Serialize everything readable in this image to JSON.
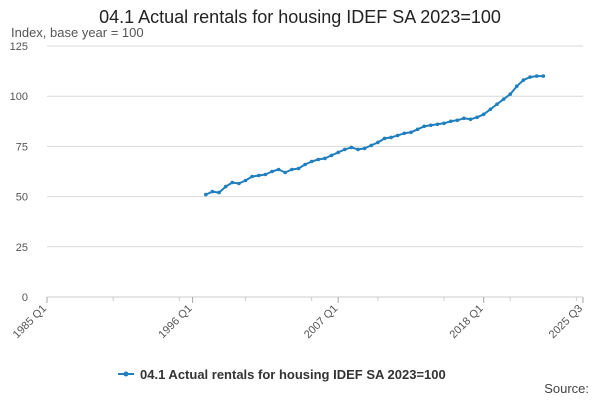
{
  "title": "04.1 Actual rentals for housing IDEF SA 2023=100",
  "ylabel": "Index, base year = 100",
  "source": "Source:",
  "colors": {
    "series": "#1f7fbf",
    "grid": "#d9d9d9",
    "axis": "#cccccc"
  },
  "chart_data": {
    "type": "line",
    "title": "04.1 Actual rentals for housing IDEF SA 2023=100",
    "ylabel": "Index, base year = 100",
    "xlabel": "",
    "ylim": [
      0,
      125
    ],
    "yticks": [
      0,
      25,
      50,
      75,
      100,
      125
    ],
    "xlim": [
      "1985 Q1",
      "2025 Q3"
    ],
    "xticks": [
      "1985 Q1",
      "1996 Q1",
      "2007 Q1",
      "2018 Q1",
      "2025 Q3"
    ],
    "grid": true,
    "legend": "bottom",
    "series": [
      {
        "name": "04.1 Actual rentals for housing IDEF SA 2023=100",
        "points": [
          [
            "1997 Q1",
            51
          ],
          [
            "1997 Q3",
            52.5
          ],
          [
            "1998 Q1",
            52
          ],
          [
            "1998 Q3",
            55
          ],
          [
            "1999 Q1",
            57
          ],
          [
            "1999 Q3",
            56.5
          ],
          [
            "2000 Q1",
            58
          ],
          [
            "2000 Q3",
            60
          ],
          [
            "2001 Q1",
            60.5
          ],
          [
            "2001 Q3",
            61
          ],
          [
            "2002 Q1",
            62.5
          ],
          [
            "2002 Q3",
            63.5
          ],
          [
            "2003 Q1",
            62
          ],
          [
            "2003 Q3",
            63.5
          ],
          [
            "2004 Q1",
            64
          ],
          [
            "2004 Q3",
            66
          ],
          [
            "2005 Q1",
            67.5
          ],
          [
            "2005 Q3",
            68.5
          ],
          [
            "2006 Q1",
            69
          ],
          [
            "2006 Q3",
            70.5
          ],
          [
            "2007 Q1",
            72
          ],
          [
            "2007 Q3",
            73.5
          ],
          [
            "2008 Q1",
            74.5
          ],
          [
            "2008 Q3",
            73.5
          ],
          [
            "2009 Q1",
            74
          ],
          [
            "2009 Q3",
            75.5
          ],
          [
            "2010 Q1",
            77
          ],
          [
            "2010 Q3",
            79
          ],
          [
            "2011 Q1",
            79.5
          ],
          [
            "2011 Q3",
            80.5
          ],
          [
            "2012 Q1",
            81.5
          ],
          [
            "2012 Q3",
            82
          ],
          [
            "2013 Q1",
            83.5
          ],
          [
            "2013 Q3",
            85
          ],
          [
            "2014 Q1",
            85.5
          ],
          [
            "2014 Q3",
            86
          ],
          [
            "2015 Q1",
            86.5
          ],
          [
            "2015 Q3",
            87.5
          ],
          [
            "2016 Q1",
            88
          ],
          [
            "2016 Q3",
            89
          ],
          [
            "2017 Q1",
            88.5
          ],
          [
            "2017 Q3",
            89.5
          ],
          [
            "2018 Q1",
            91
          ],
          [
            "2018 Q3",
            93.5
          ],
          [
            "2019 Q1",
            96
          ],
          [
            "2019 Q3",
            98.5
          ],
          [
            "2020 Q1",
            101
          ],
          [
            "2020 Q3",
            105
          ],
          [
            "2021 Q1",
            108
          ],
          [
            "2021 Q3",
            109.5
          ],
          [
            "2022 Q1",
            110
          ],
          [
            "2022 Q3",
            110
          ]
        ]
      }
    ]
  }
}
